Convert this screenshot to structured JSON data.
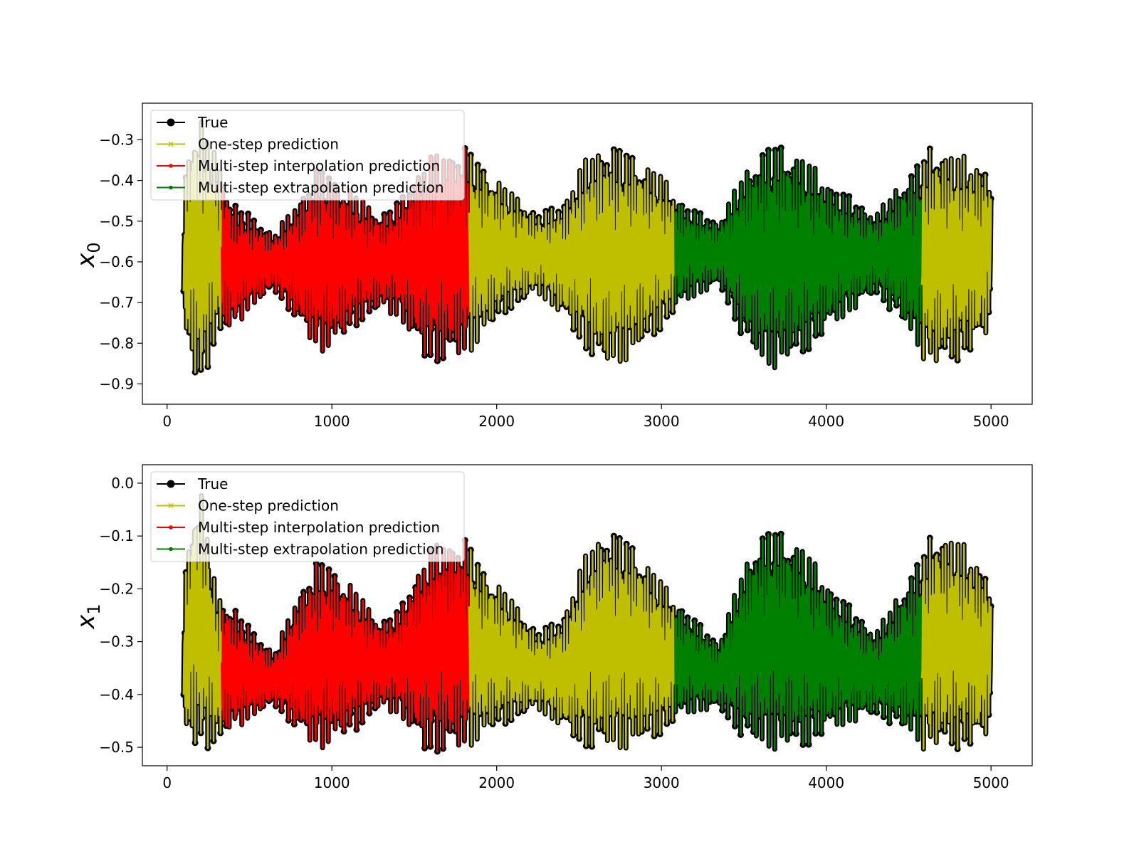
{
  "chart_data": [
    {
      "type": "line",
      "ylabel": "x",
      "ylabel_sub": "0",
      "xlim": [
        -150,
        5250
      ],
      "ylim": [
        -0.95,
        -0.21
      ],
      "xticks": [
        0,
        1000,
        2000,
        3000,
        4000,
        5000
      ],
      "xtick_labels": [
        "0",
        "1000",
        "2000",
        "3000",
        "4000",
        "5000"
      ],
      "yticks": [
        -0.9,
        -0.8,
        -0.7,
        -0.6,
        -0.5,
        -0.4,
        -0.3
      ],
      "ytick_labels": [
        "−0.9",
        "−0.8",
        "−0.7",
        "−0.6",
        "−0.5",
        "−0.4",
        "−0.3"
      ],
      "legend_position": "top-left",
      "legend": [
        {
          "label": "True",
          "color": "#000000"
        },
        {
          "label": "One-step prediction",
          "color": "#bfbf00"
        },
        {
          "label": "Multi-step interpolation prediction",
          "color": "#ff0000"
        },
        {
          "label": "Multi-step extrapolation prediction",
          "color": "#008000"
        }
      ],
      "x_range": [
        100,
        5000
      ],
      "center": -0.59,
      "segments": [
        {
          "series": "One-step prediction",
          "x_start": 100,
          "x_end": 330,
          "color": "#bfbf00"
        },
        {
          "series": "Multi-step interpolation prediction",
          "x_start": 330,
          "x_end": 1830,
          "color": "#ff0000"
        },
        {
          "series": "One-step prediction",
          "x_start": 1830,
          "x_end": 3080,
          "color": "#bfbf00"
        },
        {
          "series": "Multi-step extrapolation prediction",
          "x_start": 3080,
          "x_end": 4580,
          "color": "#008000"
        },
        {
          "series": "One-step prediction",
          "x_start": 4580,
          "x_end": 5000,
          "color": "#bfbf00"
        }
      ],
      "envelope": [
        [
          100,
          -0.77,
          -0.4
        ],
        [
          150,
          -0.88,
          -0.26
        ],
        [
          200,
          -0.92,
          -0.24
        ],
        [
          300,
          -0.8,
          -0.33
        ],
        [
          400,
          -0.77,
          -0.45
        ],
        [
          500,
          -0.72,
          -0.48
        ],
        [
          650,
          -0.67,
          -0.53
        ],
        [
          800,
          -0.76,
          -0.44
        ],
        [
          920,
          -0.83,
          -0.36
        ],
        [
          1000,
          -0.82,
          -0.38
        ],
        [
          1150,
          -0.76,
          -0.43
        ],
        [
          1300,
          -0.72,
          -0.48
        ],
        [
          1400,
          -0.74,
          -0.45
        ],
        [
          1550,
          -0.84,
          -0.35
        ],
        [
          1650,
          -0.86,
          -0.32
        ],
        [
          1820,
          -0.84,
          -0.31
        ],
        [
          1900,
          -0.8,
          -0.35
        ],
        [
          2050,
          -0.73,
          -0.41
        ],
        [
          2250,
          -0.68,
          -0.48
        ],
        [
          2400,
          -0.74,
          -0.45
        ],
        [
          2550,
          -0.83,
          -0.33
        ],
        [
          2650,
          -0.87,
          -0.3
        ],
        [
          2800,
          -0.85,
          -0.32
        ],
        [
          3000,
          -0.77,
          -0.38
        ],
        [
          3150,
          -0.7,
          -0.46
        ],
        [
          3350,
          -0.66,
          -0.5
        ],
        [
          3500,
          -0.8,
          -0.37
        ],
        [
          3600,
          -0.86,
          -0.32
        ],
        [
          3700,
          -0.87,
          -0.3
        ],
        [
          3850,
          -0.84,
          -0.33
        ],
        [
          4050,
          -0.76,
          -0.41
        ],
        [
          4300,
          -0.68,
          -0.48
        ],
        [
          4450,
          -0.75,
          -0.4
        ],
        [
          4600,
          -0.85,
          -0.33
        ],
        [
          4650,
          -0.87,
          -0.3
        ],
        [
          4800,
          -0.85,
          -0.33
        ],
        [
          5000,
          -0.79,
          -0.36
        ]
      ]
    },
    {
      "type": "line",
      "ylabel": "x",
      "ylabel_sub": "1",
      "xlim": [
        -150,
        5250
      ],
      "ylim": [
        -0.535,
        0.035
      ],
      "xticks": [
        0,
        1000,
        2000,
        3000,
        4000,
        5000
      ],
      "xtick_labels": [
        "0",
        "1000",
        "2000",
        "3000",
        "4000",
        "5000"
      ],
      "yticks": [
        -0.5,
        -0.4,
        -0.3,
        -0.2,
        -0.1,
        0.0
      ],
      "ytick_labels": [
        "−0.5",
        "−0.4",
        "−0.3",
        "−0.2",
        "−0.1",
        "0.0"
      ],
      "legend_position": "top-left",
      "legend": [
        {
          "label": "True",
          "color": "#000000"
        },
        {
          "label": "One-step prediction",
          "color": "#bfbf00"
        },
        {
          "label": "Multi-step interpolation prediction",
          "color": "#ff0000"
        },
        {
          "label": "Multi-step extrapolation prediction",
          "color": "#008000"
        }
      ],
      "x_range": [
        100,
        5000
      ],
      "center": -0.37,
      "segments": [
        {
          "series": "One-step prediction",
          "x_start": 100,
          "x_end": 330,
          "color": "#bfbf00"
        },
        {
          "series": "Multi-step interpolation prediction",
          "x_start": 330,
          "x_end": 1830,
          "color": "#ff0000"
        },
        {
          "series": "One-step prediction",
          "x_start": 1830,
          "x_end": 3080,
          "color": "#bfbf00"
        },
        {
          "series": "Multi-step extrapolation prediction",
          "x_start": 3080,
          "x_end": 4580,
          "color": "#008000"
        },
        {
          "series": "One-step prediction",
          "x_start": 4580,
          "x_end": 5000,
          "color": "#bfbf00"
        }
      ],
      "envelope": [
        [
          100,
          -0.48,
          -0.18
        ],
        [
          150,
          -0.51,
          -0.05
        ],
        [
          200,
          -0.51,
          0.0
        ],
        [
          300,
          -0.5,
          -0.2
        ],
        [
          400,
          -0.47,
          -0.23
        ],
        [
          500,
          -0.45,
          -0.27
        ],
        [
          650,
          -0.42,
          -0.32
        ],
        [
          800,
          -0.48,
          -0.2
        ],
        [
          920,
          -0.51,
          -0.14
        ],
        [
          1000,
          -0.5,
          -0.15
        ],
        [
          1150,
          -0.47,
          -0.2
        ],
        [
          1300,
          -0.43,
          -0.26
        ],
        [
          1400,
          -0.44,
          -0.24
        ],
        [
          1550,
          -0.51,
          -0.14
        ],
        [
          1650,
          -0.52,
          -0.1
        ],
        [
          1820,
          -0.51,
          -0.1
        ],
        [
          1900,
          -0.49,
          -0.15
        ],
        [
          2050,
          -0.46,
          -0.2
        ],
        [
          2250,
          -0.43,
          -0.28
        ],
        [
          2400,
          -0.47,
          -0.25
        ],
        [
          2550,
          -0.51,
          -0.12
        ],
        [
          2650,
          -0.51,
          -0.08
        ],
        [
          2800,
          -0.51,
          -0.1
        ],
        [
          3000,
          -0.48,
          -0.18
        ],
        [
          3150,
          -0.44,
          -0.24
        ],
        [
          3350,
          -0.43,
          -0.3
        ],
        [
          3500,
          -0.49,
          -0.15
        ],
        [
          3600,
          -0.51,
          -0.09
        ],
        [
          3700,
          -0.51,
          -0.08
        ],
        [
          3850,
          -0.51,
          -0.11
        ],
        [
          4050,
          -0.47,
          -0.2
        ],
        [
          4300,
          -0.44,
          -0.28
        ],
        [
          4450,
          -0.47,
          -0.2
        ],
        [
          4600,
          -0.51,
          -0.12
        ],
        [
          4650,
          -0.51,
          -0.08
        ],
        [
          4800,
          -0.51,
          -0.1
        ],
        [
          5000,
          -0.49,
          -0.17
        ]
      ]
    }
  ]
}
